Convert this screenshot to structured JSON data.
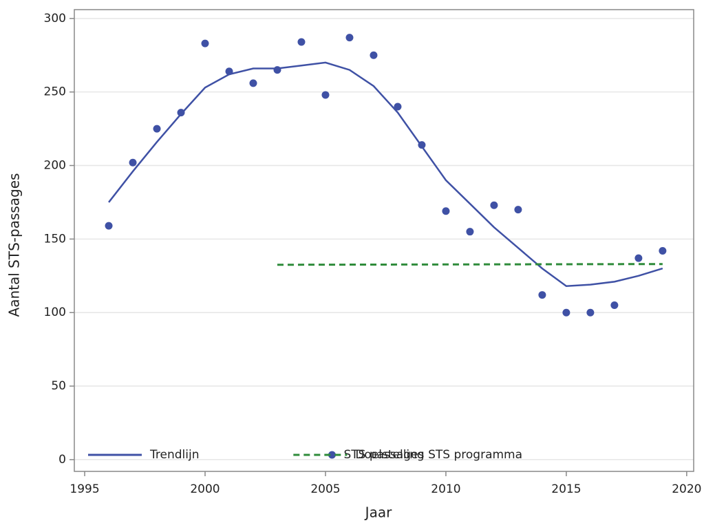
{
  "chart_data": {
    "type": "line",
    "xlabel": "Jaar",
    "ylabel": "Aantal STS-passages",
    "xlim": [
      1994.57,
      2020.29
    ],
    "xticks": [
      1995,
      2000,
      2005,
      2010,
      2015,
      2020
    ],
    "ylim": [
      -8,
      306
    ],
    "yticks": [
      0,
      50,
      100,
      150,
      200,
      250,
      300
    ],
    "grid": true,
    "legend": "bottom-left",
    "series": [
      {
        "name": "Trendlijn",
        "type": "line",
        "color": "#3f51a5",
        "dashed": false,
        "x": [
          1996,
          1997,
          1998,
          1999,
          2000,
          2001,
          2002,
          2003,
          2004,
          2005,
          2006,
          2007,
          2008,
          2009,
          2010,
          2011,
          2012,
          2013,
          2014,
          2015,
          2016,
          2017,
          2018,
          2019
        ],
        "values": [
          175,
          196,
          216,
          235,
          253,
          262,
          266,
          266,
          268,
          270,
          265,
          254,
          236,
          213,
          190,
          174,
          158,
          144,
          130,
          118,
          119,
          121,
          125,
          130
        ]
      },
      {
        "name": "STS passages",
        "type": "scatter",
        "color": "#3f51a5",
        "dashed": false,
        "x": [
          1996,
          1997,
          1998,
          1999,
          2000,
          2001,
          2002,
          2003,
          2004,
          2005,
          2006,
          2007,
          2008,
          2009,
          2010,
          2011,
          2012,
          2013,
          2014,
          2015,
          2016,
          2017,
          2018,
          2019
        ],
        "values": [
          159,
          202,
          225,
          236,
          283,
          264,
          256,
          265,
          284,
          248,
          287,
          275,
          240,
          214,
          169,
          155,
          173,
          170,
          112,
          100,
          100,
          105,
          137,
          142
        ]
      },
      {
        "name": "Doelstelling STS programma",
        "type": "line",
        "color": "#2e8b3a",
        "dashed": true,
        "x": [
          2003,
          2019
        ],
        "values": [
          132.5,
          133
        ]
      }
    ]
  }
}
